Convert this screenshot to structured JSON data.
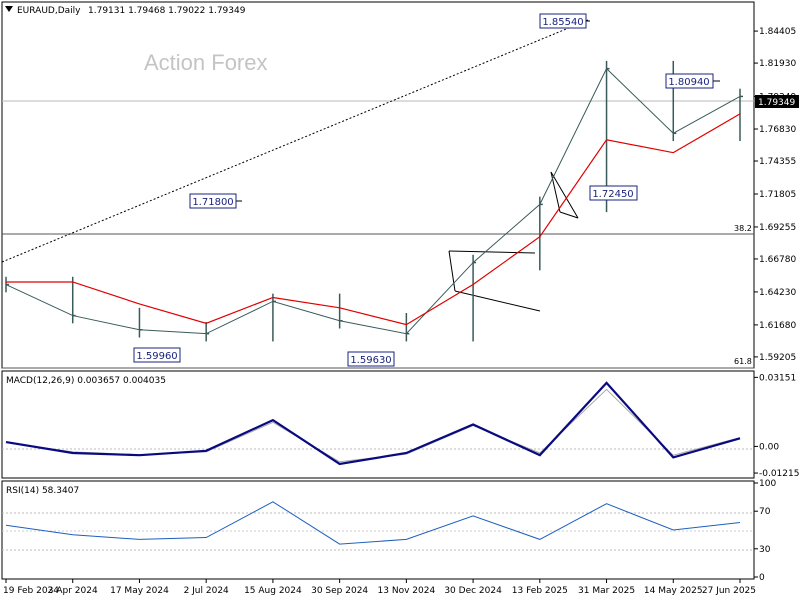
{
  "header": {
    "symbol": "EURAUD,Daily",
    "ohlc": "1.79131 1.79468 1.79022 1.79349"
  },
  "watermark": "Action Forex",
  "current_price_label": "1.79349",
  "colors": {
    "price": "#3a5a5a",
    "ma": "#e00000",
    "macd_main": "#0a0a80",
    "macd_signal": "#a8a8a8",
    "rsi": "#1f5fbf",
    "callout_border": "#1a237e",
    "callout_text": "#1a237e"
  },
  "chart_data": [
    {
      "type": "line",
      "panel": "price",
      "x": [
        "19 Feb 2024",
        "3 Apr 2024",
        "17 May 2024",
        "2 Jul 2024",
        "15 Aug 2024",
        "30 Sep 2024",
        "13 Nov 2024",
        "30 Dec 2024",
        "13 Feb 2025",
        "31 Mar 2025",
        "14 May 2025",
        "27 Jun 2025"
      ],
      "ylim": [
        1.585,
        1.865
      ],
      "y_ticks": [
        "1.84405",
        "1.81930",
        "1.79349",
        "1.76830",
        "1.74355",
        "1.71805",
        "1.69255",
        "1.66780",
        "1.64230",
        "1.61680",
        "1.59205"
      ],
      "series": [
        {
          "values": [
            1.648,
            1.624,
            1.613,
            1.61,
            1.635,
            1.62,
            1.61,
            1.665,
            1.71,
            1.815,
            1.765,
            1.7935
          ]
        },
        {
          "values": [
            1.65,
            1.65,
            1.633,
            1.618,
            1.638,
            1.63,
            1.617,
            1.648,
            1.685,
            1.76,
            1.75,
            1.78
          ]
        }
      ],
      "annotations": [
        "1.85540",
        "1.80940",
        "1.72450",
        "1.71800",
        "1.59960",
        "1.59630",
        "38.2",
        "61.8"
      ]
    },
    {
      "type": "line",
      "panel": "macd",
      "title": "MACD(12,26,9) 0.003657 0.004035",
      "x": [
        "19 Feb 2024",
        "3 Apr 2024",
        "17 May 2024",
        "2 Jul 2024",
        "15 Aug 2024",
        "30 Sep 2024",
        "13 Nov 2024",
        "30 Dec 2024",
        "13 Feb 2025",
        "31 Mar 2025",
        "14 May 2025",
        "27 Jun 2025"
      ],
      "ylim": [
        -0.0135,
        0.0335
      ],
      "y_ticks": [
        "0.03151",
        "0.00",
        "-0.01215"
      ],
      "series": [
        {
          "values": [
            0.002,
            -0.003,
            -0.004,
            -0.002,
            0.012,
            -0.008,
            -0.003,
            0.01,
            -0.004,
            0.029,
            -0.005,
            0.0037
          ]
        },
        {
          "values": [
            0.0018,
            -0.0025,
            -0.0038,
            -0.0025,
            0.011,
            -0.007,
            -0.0035,
            0.0095,
            -0.003,
            0.026,
            -0.004,
            0.004
          ]
        }
      ]
    },
    {
      "type": "line",
      "panel": "rsi",
      "title": "RSI(14) 58.3407",
      "x": [
        "19 Feb 2024",
        "3 Apr 2024",
        "17 May 2024",
        "2 Jul 2024",
        "15 Aug 2024",
        "30 Sep 2024",
        "13 Nov 2024",
        "30 Dec 2024",
        "13 Feb 2025",
        "31 Mar 2025",
        "14 May 2025",
        "27 Jun 2025"
      ],
      "ylim": [
        0,
        100
      ],
      "y_ticks": [
        "100",
        "70",
        "30",
        "0"
      ],
      "levels": [
        70,
        50,
        30
      ],
      "series": [
        {
          "values": [
            55,
            45,
            40,
            42,
            80,
            35,
            40,
            65,
            40,
            78,
            50,
            58
          ]
        }
      ]
    }
  ]
}
